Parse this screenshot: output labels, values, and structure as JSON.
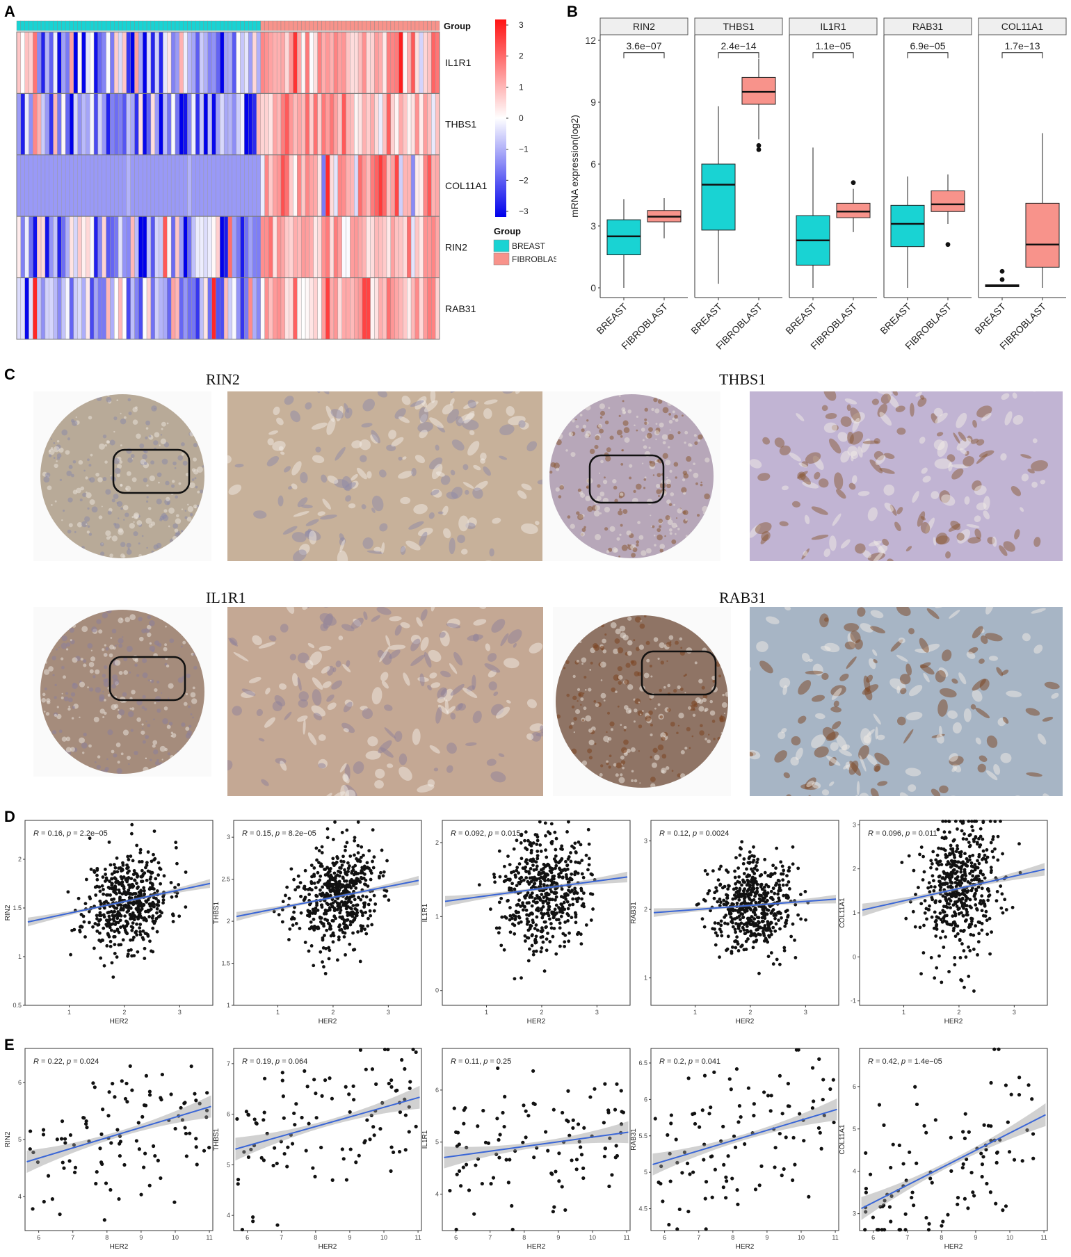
{
  "panels": {
    "a": "A",
    "b": "B",
    "c": "C",
    "d": "D",
    "e": "E"
  },
  "heatmap": {
    "group_label": "Group",
    "genes": [
      "IL1R1",
      "THBS1",
      "COL11A1",
      "RIN2",
      "RAB31"
    ],
    "scale_ticks": [
      "3",
      "2",
      "1",
      "0",
      "−1",
      "−2",
      "−3"
    ],
    "legend_title": "Group",
    "legend_items": [
      {
        "label": "BREAST",
        "color": "#19d3d3"
      },
      {
        "label": "FIBROBLAST",
        "color": "#f8938b"
      }
    ],
    "n_breast": 60,
    "n_fibroblast": 44
  },
  "boxplot": {
    "ylabel": "mRNA expression(log2)",
    "yticks": [
      "0",
      "3",
      "6",
      "9",
      "12"
    ],
    "ylim": [
      0,
      12
    ],
    "colors": {
      "breast": "#19d3d3",
      "fibroblast": "#f8938b"
    },
    "categories": [
      "BREAST",
      "FIBROBLAST"
    ],
    "facets": [
      {
        "gene": "RIN2",
        "p": "3.6e−07",
        "breast": {
          "min": 0.0,
          "q1": 1.6,
          "median": 2.5,
          "q3": 3.3,
          "max": 4.3,
          "outliers": []
        },
        "fibroblast": {
          "min": 2.4,
          "q1": 3.2,
          "median": 3.45,
          "q3": 3.75,
          "max": 4.35,
          "outliers": []
        }
      },
      {
        "gene": "THBS1",
        "p": "2.4e−14",
        "breast": {
          "min": 0.2,
          "q1": 2.8,
          "median": 5.0,
          "q3": 6.0,
          "max": 8.8,
          "outliers": []
        },
        "fibroblast": {
          "min": 7.2,
          "q1": 8.9,
          "median": 9.5,
          "q3": 10.2,
          "max": 11.1,
          "outliers": [
            6.9,
            6.7
          ]
        }
      },
      {
        "gene": "IL1R1",
        "p": "1.1e−05",
        "breast": {
          "min": 0.0,
          "q1": 1.1,
          "median": 2.3,
          "q3": 3.5,
          "max": 6.8,
          "outliers": []
        },
        "fibroblast": {
          "min": 2.7,
          "q1": 3.4,
          "median": 3.7,
          "q3": 4.1,
          "max": 4.8,
          "outliers": [
            5.1
          ]
        }
      },
      {
        "gene": "RAB31",
        "p": "6.9e−05",
        "breast": {
          "min": 0.0,
          "q1": 2.0,
          "median": 3.1,
          "q3": 4.0,
          "max": 5.4,
          "outliers": []
        },
        "fibroblast": {
          "min": 3.1,
          "q1": 3.7,
          "median": 4.05,
          "q3": 4.7,
          "max": 5.5,
          "outliers": [
            2.1
          ]
        }
      },
      {
        "gene": "COL11A1",
        "p": "1.7e−13",
        "breast": {
          "min": 0.05,
          "q1": 0.05,
          "median": 0.1,
          "q3": 0.15,
          "max": 0.15,
          "outliers": [
            0.4,
            0.8
          ]
        },
        "fibroblast": {
          "min": 0.0,
          "q1": 1.0,
          "median": 2.1,
          "q3": 4.1,
          "max": 7.5,
          "outliers": []
        }
      }
    ]
  },
  "ihc": [
    {
      "gene": "RIN2",
      "core": "#b8aa98",
      "zoom": "#c7b19a",
      "nuclei": "#8d8aa8"
    },
    {
      "gene": "THBS1",
      "core": "#b7a7b9",
      "zoom": "#c1b4d3",
      "nuclei": "#8a5a35"
    },
    {
      "gene": "IL1R1",
      "core": "#a58c7c",
      "zoom": "#c4a894",
      "nuclei": "#8d7f9a"
    },
    {
      "gene": "RAB31",
      "core": "#8f7465",
      "zoom": "#a7b5c5",
      "nuclei": "#7b4320"
    }
  ],
  "scatter_d": {
    "xlabel": "HER2",
    "panels": [
      {
        "ylabel": "RIN2",
        "r": "0.16",
        "p": "2.2e−05",
        "xlim": [
          0.2,
          3.6
        ],
        "ylim": [
          0.5,
          2.4
        ],
        "xticks": [
          1,
          2,
          3
        ],
        "yticks": [
          0.5,
          1.0,
          1.5,
          2.0
        ],
        "fit": [
          1.35,
          0.12
        ],
        "n": 520,
        "spread": 0.25,
        "seed": 11
      },
      {
        "ylabel": "THBS1",
        "r": "0.15",
        "p": "8.2e−05",
        "xlim": [
          0.2,
          3.6
        ],
        "ylim": [
          1.0,
          3.2
        ],
        "xticks": [
          1,
          2,
          3
        ],
        "yticks": [
          1.0,
          1.5,
          2.0,
          2.5,
          3.0
        ],
        "fit": [
          2.05,
          0.13
        ],
        "n": 520,
        "spread": 0.3,
        "seed": 23
      },
      {
        "ylabel": "IL1R1",
        "r": "0.092",
        "p": "0.015",
        "xlim": [
          0.2,
          3.6
        ],
        "ylim": [
          -0.2,
          2.3
        ],
        "xticks": [
          1,
          2,
          3
        ],
        "yticks": [
          0,
          1,
          2
        ],
        "fit": [
          1.2,
          0.1
        ],
        "n": 520,
        "spread": 0.4,
        "seed": 37
      },
      {
        "ylabel": "RAB31",
        "r": "0.12",
        "p": "0.0024",
        "xlim": [
          0.2,
          3.6
        ],
        "ylim": [
          0.6,
          3.3
        ],
        "xticks": [
          1,
          2,
          3
        ],
        "yticks": [
          1,
          2,
          3
        ],
        "fit": [
          1.95,
          0.06
        ],
        "n": 520,
        "spread": 0.35,
        "seed": 41
      },
      {
        "ylabel": "COL11A1",
        "r": "0.096",
        "p": "0.011",
        "xlim": [
          0.2,
          3.6
        ],
        "ylim": [
          -1.1,
          3.1
        ],
        "xticks": [
          1,
          2,
          3
        ],
        "yticks": [
          -1,
          0,
          1,
          2,
          3
        ],
        "fit": [
          1.05,
          0.28
        ],
        "n": 520,
        "spread": 0.8,
        "seed": 53
      }
    ]
  },
  "scatter_e": {
    "xlabel": "HER2",
    "panels": [
      {
        "ylabel": "RIN2",
        "r": "0.22",
        "p": "0.024",
        "xlim": [
          5.6,
          11.1
        ],
        "ylim": [
          3.4,
          6.6
        ],
        "xticks": [
          6,
          7,
          8,
          9,
          10,
          11
        ],
        "yticks": [
          4,
          5,
          6
        ],
        "fit": [
          4.6,
          0.18
        ],
        "n": 105,
        "spread": 0.65,
        "seed": 61
      },
      {
        "ylabel": "THBS1",
        "r": "0.19",
        "p": "0.064",
        "xlim": [
          5.6,
          11.1
        ],
        "ylim": [
          3.7,
          7.3
        ],
        "xticks": [
          6,
          7,
          8,
          9,
          10,
          11
        ],
        "yticks": [
          4,
          5,
          6,
          7
        ],
        "fit": [
          5.3,
          0.19
        ],
        "n": 105,
        "spread": 0.75,
        "seed": 67
      },
      {
        "ylabel": "IL1R1",
        "r": "0.11",
        "p": "0.25",
        "xlim": [
          5.6,
          11.1
        ],
        "ylim": [
          3.3,
          6.8
        ],
        "xticks": [
          6,
          7,
          8,
          9,
          10,
          11
        ],
        "yticks": [
          4,
          5,
          6
        ],
        "fit": [
          4.7,
          0.09
        ],
        "n": 105,
        "spread": 0.7,
        "seed": 71
      },
      {
        "ylabel": "RAB31",
        "r": "0.2",
        "p": "0.041",
        "xlim": [
          5.6,
          11.1
        ],
        "ylim": [
          4.2,
          6.7
        ],
        "xticks": [
          6,
          7,
          8,
          9,
          10,
          11
        ],
        "yticks": [
          4.5,
          5.0,
          5.5,
          6.0,
          6.5
        ],
        "fit": [
          5.1,
          0.14
        ],
        "n": 105,
        "spread": 0.5,
        "seed": 79
      },
      {
        "ylabel": "COL11A1",
        "r": "0.42",
        "p": "1.4e−05",
        "xlim": [
          5.6,
          11.1
        ],
        "ylim": [
          2.6,
          6.9
        ],
        "xticks": [
          6,
          7,
          8,
          9,
          10,
          11
        ],
        "yticks": [
          3,
          4,
          5,
          6
        ],
        "fit": [
          3.1,
          0.41
        ],
        "n": 105,
        "spread": 0.9,
        "seed": 83
      }
    ]
  }
}
